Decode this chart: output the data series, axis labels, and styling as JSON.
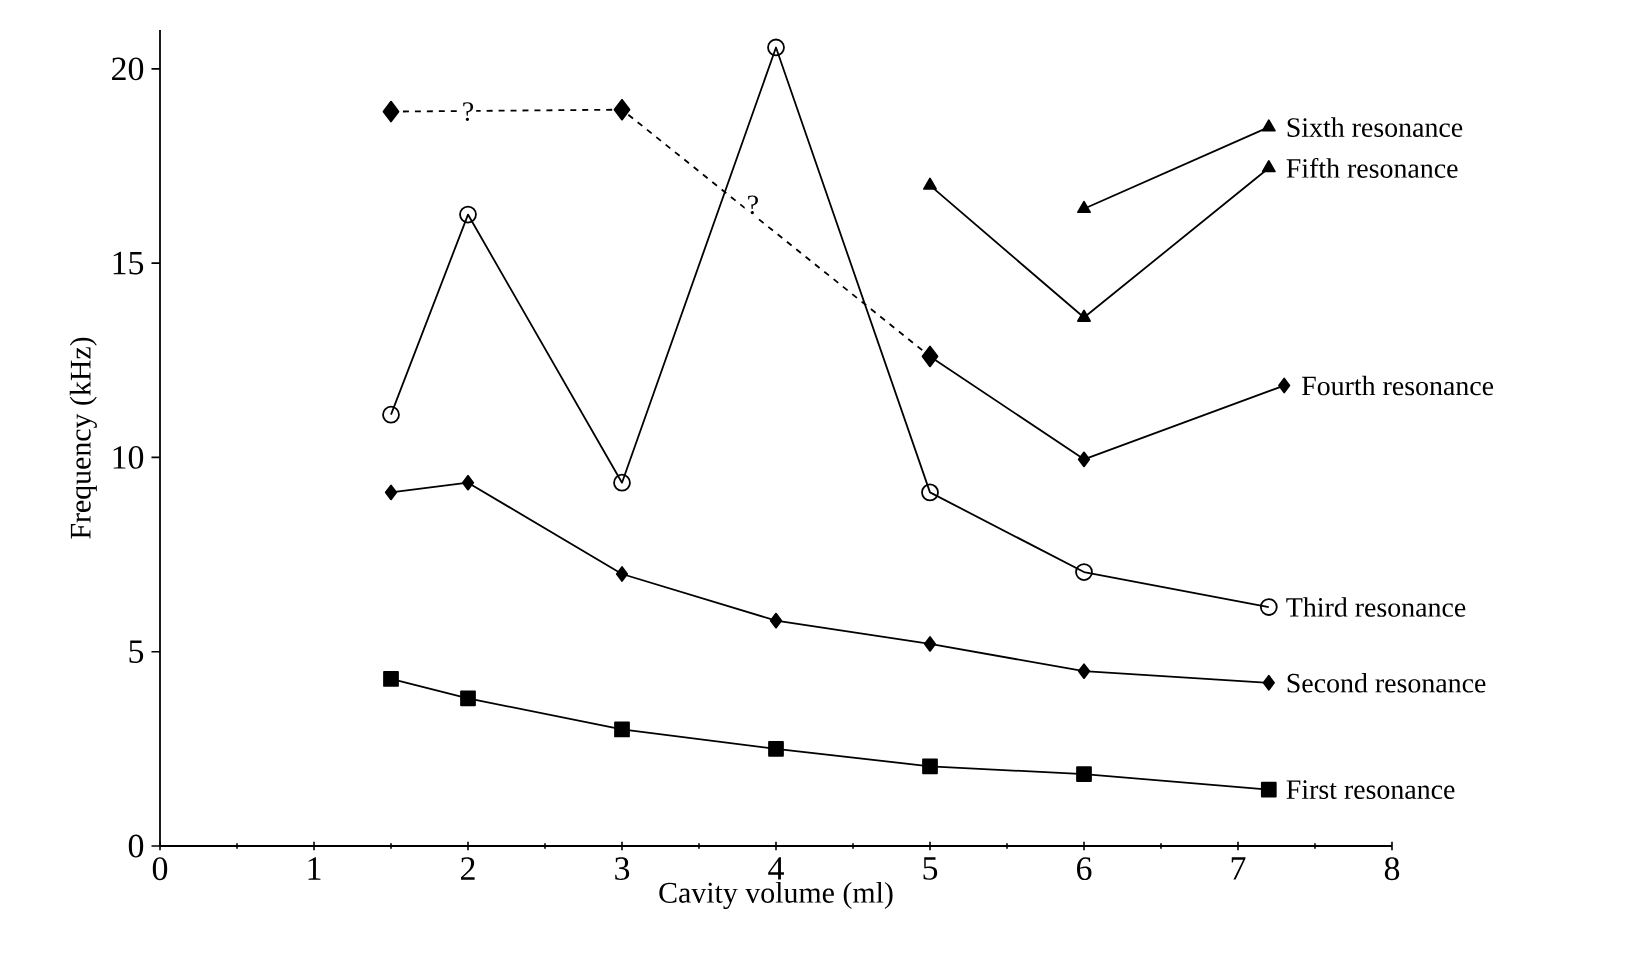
{
  "chart_data": {
    "type": "line",
    "xlabel": "Cavity volume (ml)",
    "ylabel": "Frequency (kHz)",
    "xlim": [
      0,
      8
    ],
    "ylim": [
      0,
      21
    ],
    "xticks": [
      0,
      1,
      2,
      3,
      4,
      5,
      6,
      7,
      8
    ],
    "yticks": [
      0,
      5,
      10,
      15,
      20
    ],
    "series": [
      {
        "name": "First resonance",
        "color": "#000000",
        "marker": "square",
        "x": [
          1.5,
          2,
          3,
          4,
          5,
          6,
          7.2
        ],
        "values": [
          4.3,
          3.8,
          3.0,
          2.5,
          2.05,
          1.85,
          1.45
        ]
      },
      {
        "name": "Second resonance",
        "color": "#000000",
        "marker": "diamond",
        "x": [
          1.5,
          2,
          3,
          4,
          5,
          6,
          7.2
        ],
        "values": [
          9.1,
          9.35,
          7.0,
          5.8,
          5.2,
          4.5,
          4.2
        ]
      },
      {
        "name": "Third resonance",
        "color": "#000000",
        "marker": "circle",
        "x": [
          1.5,
          2,
          3,
          4,
          5,
          6,
          7.2
        ],
        "values": [
          11.1,
          16.25,
          9.35,
          20.55,
          9.1,
          7.05,
          6.15
        ]
      },
      {
        "color": "#000000",
        "marker": "diamond",
        "line_style": "dashed",
        "x": [
          1.5,
          3,
          5
        ],
        "values": [
          18.9,
          18.95,
          12.6
        ]
      },
      {
        "name": "Fourth resonance",
        "color": "#000000",
        "marker": "diamond",
        "x": [
          5,
          6,
          7.3
        ],
        "values": [
          12.6,
          9.95,
          11.85
        ]
      },
      {
        "name": "Fifth resonance",
        "color": "#000000",
        "marker": "triangle-down",
        "x": [
          5,
          6,
          7.2
        ],
        "values": [
          17.0,
          13.6,
          17.45
        ]
      },
      {
        "name": "Sixth resonance",
        "color": "#000000",
        "marker": "triangle",
        "x": [
          6,
          7.2
        ],
        "values": [
          16.4,
          18.5
        ]
      }
    ],
    "annotations": [
      {
        "text": "?",
        "x": 2,
        "y": 18.9
      },
      {
        "text": "?",
        "x": 3.85,
        "y": 16.5
      }
    ]
  }
}
